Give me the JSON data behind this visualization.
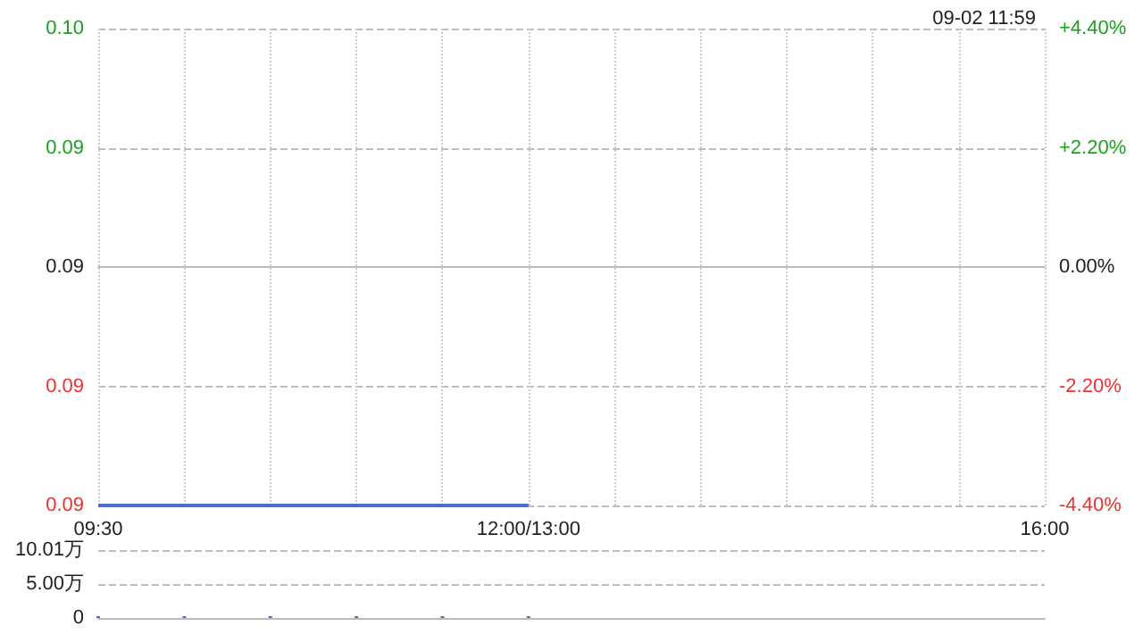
{
  "chart_data": [
    {
      "type": "line",
      "subtitle": "09-02 11:59",
      "categories": [
        "09:30",
        null,
        null,
        null,
        null,
        "12:00/13:00",
        null,
        null,
        null,
        null,
        null,
        "16:00"
      ],
      "series": [
        {
          "color": "#4a6fc8",
          "values": [
            0.087,
            0.087,
            0.087,
            0.087,
            0.087,
            0.087,
            null,
            null,
            null,
            null,
            null,
            null
          ]
        }
      ],
      "ylim": [
        0.087,
        0.095
      ],
      "yticks": [
        {
          "value": 0.087,
          "label": "0.09"
        },
        {
          "value": 0.089,
          "label": "0.09"
        },
        {
          "value": 0.091,
          "label": "0.09"
        },
        {
          "value": 0.093,
          "label": "0.09"
        },
        {
          "value": 0.095,
          "label": "0.10"
        }
      ],
      "y2lim": [
        -4.4,
        4.4
      ],
      "y2ticks": [
        {
          "value": -4.4,
          "label": "-4.40%"
        },
        {
          "value": -2.2,
          "label": "-2.20%"
        },
        {
          "value": 0,
          "label": "0.00%"
        },
        {
          "value": 2.2,
          "label": "+2.20%"
        },
        {
          "value": 4.4,
          "label": "+4.40%"
        }
      ],
      "grid": true,
      "marker": "none",
      "line_style": "solid"
    },
    {
      "type": "bar",
      "categories": [
        null,
        null,
        null,
        null,
        null,
        null,
        null,
        null,
        null,
        null,
        null,
        null
      ],
      "values": [
        0,
        0,
        0,
        0,
        0,
        0,
        null,
        null,
        null,
        null,
        null,
        null
      ],
      "color": "#4a6fc8",
      "ylim": [
        0,
        10.01
      ],
      "yticks": [
        0,
        {
          "value": 5,
          "label": "5.00万"
        },
        {
          "value": 10.01,
          "label": "10.01万"
        }
      ],
      "grid": "y"
    }
  ]
}
